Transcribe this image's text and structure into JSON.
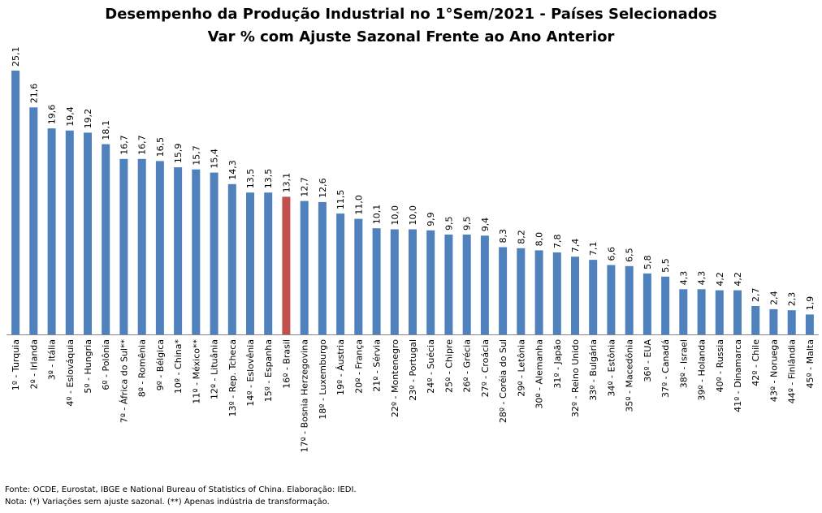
{
  "chart_data": {
    "type": "bar",
    "title": "Desempenho da Produção Industrial no 1°Sem/2021 - Países Selecionados",
    "subtitle": "Var % com Ajuste Sazonal Frente ao Ano Anterior",
    "categories": [
      "1º - Turquia",
      "2º - Irlanda",
      "3º - Itália",
      "4º - Eslováquia",
      "5º - Hungria",
      "6º - Polônia",
      "7º - África do Sul**",
      "8º - Romênia",
      "9º - Bélgica",
      "10º - China*",
      "11º - México**",
      "12º - Lituânia",
      "13º - Rep. Tcheca",
      "14º - Eslovênia",
      "15º - Espanha",
      "16º - Brasil",
      "17º - Bosnia Herzegovina",
      "18º - Luxemburgo",
      "19º - Áustria",
      "20º - França",
      "21º - Sérvia",
      "22º - Montenegro",
      "23º - Portugal",
      "24º - Suécia",
      "25º - Chipre",
      "26º - Grécia",
      "27º - Croácia",
      "28º - Coréia do Sul",
      "29º - Letônia",
      "30º - Alemanha",
      "31º - Japão",
      "32º - Reino Unido",
      "33º - Bulgária",
      "34º - Estônia",
      "35º - Macedônia",
      "36º - EUA",
      "37º - Canadá",
      "38º - Israel",
      "39º - Holanda",
      "40º - Russia",
      "41º - Dinamarca",
      "42º - Chile",
      "43º - Noruega",
      "44º - Finlândia",
      "45º - Malta"
    ],
    "values": [
      25.1,
      21.6,
      19.6,
      19.4,
      19.2,
      18.1,
      16.7,
      16.7,
      16.5,
      15.9,
      15.7,
      15.4,
      14.3,
      13.5,
      13.5,
      13.1,
      12.7,
      12.6,
      11.5,
      11.0,
      10.1,
      10.0,
      10.0,
      9.9,
      9.5,
      9.5,
      9.4,
      8.3,
      8.2,
      8.0,
      7.8,
      7.4,
      7.1,
      6.6,
      6.5,
      5.8,
      5.5,
      4.3,
      4.3,
      4.2,
      4.2,
      2.7,
      2.4,
      2.3,
      1.9
    ],
    "value_labels": [
      "25,1",
      "21,6",
      "19,6",
      "19,4",
      "19,2",
      "18,1",
      "16,7",
      "16,7",
      "16,5",
      "15,9",
      "15,7",
      "15,4",
      "14,3",
      "13,5",
      "13,5",
      "13,1",
      "12,7",
      "12,6",
      "11,5",
      "11,0",
      "10,1",
      "10,0",
      "10,0",
      "9,9",
      "9,5",
      "9,5",
      "9,4",
      "8,3",
      "8,2",
      "8,0",
      "7,8",
      "7,4",
      "7,1",
      "6,6",
      "6,5",
      "5,8",
      "5,5",
      "4,3",
      "4,3",
      "4,2",
      "4,2",
      "2,7",
      "2,4",
      "2,3",
      "1,9"
    ],
    "highlight_index": 15,
    "colors": {
      "bar": "#4F81BD",
      "highlight": "#C0504D",
      "axis": "#868686"
    },
    "grid": false,
    "legend": "none"
  },
  "footnotes": {
    "source": "Fonte: OCDE, Eurostat, IBGE e National Bureau of Statistics of China. Elaboração: IEDI.",
    "note": "Nota: (*) Variações sem ajuste sazonal. (**) Apenas indústria de transformação."
  }
}
